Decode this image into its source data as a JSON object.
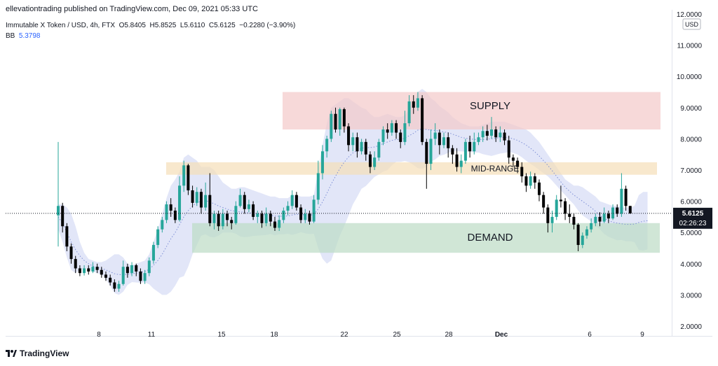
{
  "header": {
    "publisher_line": "ellevationtrading published on TradingView.com, Dec 09, 2021 05:33 UTC",
    "symbol": "Immutable X Token / USD, 4h, FTX",
    "open_label": "O",
    "open": "5.8405",
    "high_label": "H",
    "high": "5.8525",
    "low_label": "L",
    "low": "5.6110",
    "close_label": "C",
    "close": "5.6125",
    "change": "−0.2280 (−3.90%)",
    "bb_label": "BB",
    "bb_value": "5.3798"
  },
  "price_scale": {
    "currency": "USD",
    "last_price": "5.6125",
    "countdown": "02:26:23"
  },
  "footer": {
    "brand": "TradingView"
  },
  "colors": {
    "up": "#26a69a",
    "down": "#000000",
    "bb_band": "#d8def5",
    "bb_mid": "#7e8fd6",
    "supply": "#f4c9c9",
    "midrange": "#f5deb8",
    "demand": "#bcdcc4"
  },
  "chart_data": {
    "type": "candlestick",
    "title": "Immutable X Token / USD, 4h, FTX",
    "ylim": [
      2.0,
      12.0
    ],
    "ytick_labels": [
      "12.0000",
      "11.0000",
      "10.0000",
      "9.0000",
      "8.0000",
      "7.0000",
      "6.0000",
      "5.0000",
      "4.0000",
      "3.0000",
      "2.0000"
    ],
    "yticks": [
      12,
      11,
      10,
      9,
      8,
      7,
      6,
      5,
      4,
      3,
      2
    ],
    "x_tick_labels": [
      "8",
      "11",
      "15",
      "18",
      "22",
      "25",
      "28",
      "Dec",
      "6",
      "9"
    ],
    "last_price": 5.6125,
    "zones": [
      {
        "label": "SUPPLY",
        "y_low": 8.3,
        "y_high": 9.5,
        "start": "Dec 18",
        "end": "Dec 10",
        "color": "#f4c9c9"
      },
      {
        "label": "MID-RANGE",
        "y_low": 6.85,
        "y_high": 7.25,
        "start": "Nov 11",
        "end": "Dec 10",
        "color": "#f5deb8"
      },
      {
        "label": "DEMAND",
        "y_low": 4.35,
        "y_high": 5.3,
        "start": "Nov 13",
        "end": "Dec 10",
        "color": "#bcdcc4"
      }
    ],
    "candles": [
      [
        5.55,
        5.85,
        7.9,
        4.55
      ],
      [
        5.85,
        5.2,
        5.95,
        5.0
      ],
      [
        5.2,
        4.55,
        5.3,
        4.4
      ],
      [
        4.55,
        4.15,
        4.65,
        4.0
      ],
      [
        4.15,
        3.85,
        4.25,
        3.7
      ],
      [
        3.85,
        3.7,
        3.95,
        3.6
      ],
      [
        3.7,
        3.85,
        3.95,
        3.62
      ],
      [
        3.85,
        3.75,
        3.95,
        3.65
      ],
      [
        3.75,
        3.9,
        4.05,
        3.7
      ],
      [
        3.9,
        3.8,
        4.0,
        3.7
      ],
      [
        3.8,
        3.65,
        3.9,
        3.55
      ],
      [
        3.65,
        3.55,
        3.75,
        3.45
      ],
      [
        3.55,
        3.4,
        3.65,
        3.3
      ],
      [
        3.4,
        3.2,
        3.5,
        3.1
      ],
      [
        3.2,
        3.35,
        3.45,
        3.1
      ],
      [
        3.35,
        3.9,
        4.1,
        3.3
      ],
      [
        3.9,
        3.7,
        4.0,
        3.55
      ],
      [
        3.7,
        3.95,
        4.05,
        3.6
      ],
      [
        3.95,
        3.75,
        4.0,
        3.6
      ],
      [
        3.75,
        3.45,
        3.85,
        3.35
      ],
      [
        3.45,
        3.7,
        3.8,
        3.35
      ],
      [
        3.7,
        4.1,
        4.2,
        3.6
      ],
      [
        4.1,
        4.6,
        4.7,
        4.0
      ],
      [
        4.6,
        5.1,
        5.2,
        4.5
      ],
      [
        5.1,
        5.4,
        5.5,
        5.0
      ],
      [
        5.4,
        5.9,
        6.0,
        5.3
      ],
      [
        5.9,
        5.7,
        6.1,
        5.5
      ],
      [
        5.7,
        5.4,
        5.8,
        5.3
      ],
      [
        5.4,
        6.5,
        6.8,
        5.35
      ],
      [
        6.5,
        7.15,
        7.3,
        6.3
      ],
      [
        7.15,
        6.35,
        7.2,
        6.2
      ],
      [
        6.35,
        5.95,
        6.5,
        5.8
      ],
      [
        5.95,
        6.3,
        6.45,
        5.85
      ],
      [
        6.3,
        5.8,
        6.4,
        5.6
      ],
      [
        5.8,
        6.2,
        6.6,
        5.7
      ],
      [
        6.2,
        5.3,
        6.9,
        5.2
      ],
      [
        5.3,
        5.6,
        5.7,
        5.1
      ],
      [
        5.6,
        5.2,
        5.7,
        5.05
      ],
      [
        5.2,
        5.6,
        5.75,
        5.1
      ],
      [
        5.6,
        5.4,
        5.7,
        5.2
      ],
      [
        5.4,
        5.3,
        5.5,
        5.1
      ],
      [
        5.3,
        5.85,
        6.0,
        5.25
      ],
      [
        5.85,
        6.2,
        6.4,
        5.8
      ],
      [
        6.2,
        5.75,
        6.3,
        5.6
      ],
      [
        5.75,
        5.9,
        6.05,
        5.65
      ],
      [
        5.9,
        5.5,
        6.0,
        5.4
      ],
      [
        5.5,
        5.6,
        5.7,
        5.3
      ],
      [
        5.6,
        5.3,
        5.7,
        5.15
      ],
      [
        5.3,
        5.6,
        5.8,
        5.2
      ],
      [
        5.6,
        5.35,
        5.7,
        5.2
      ],
      [
        5.35,
        5.15,
        5.5,
        5.05
      ],
      [
        5.15,
        5.4,
        5.55,
        5.05
      ],
      [
        5.4,
        5.7,
        5.8,
        5.3
      ],
      [
        5.7,
        5.85,
        6.0,
        5.55
      ],
      [
        5.85,
        6.2,
        6.35,
        5.75
      ],
      [
        6.2,
        5.8,
        6.3,
        5.7
      ],
      [
        5.8,
        5.4,
        5.9,
        5.3
      ],
      [
        5.4,
        5.6,
        5.75,
        5.3
      ],
      [
        5.6,
        5.35,
        5.7,
        5.25
      ],
      [
        5.35,
        6.05,
        6.2,
        5.3
      ],
      [
        6.05,
        6.9,
        7.3,
        5.9
      ],
      [
        6.9,
        7.6,
        7.8,
        6.7
      ],
      [
        7.6,
        8.0,
        8.1,
        7.4
      ],
      [
        8.0,
        8.8,
        8.9,
        7.9
      ],
      [
        8.8,
        8.3,
        9.0,
        8.2
      ],
      [
        8.3,
        8.95,
        9.0,
        8.1
      ],
      [
        8.95,
        8.4,
        9.0,
        8.2
      ],
      [
        8.4,
        7.8,
        8.5,
        7.6
      ],
      [
        7.8,
        8.05,
        8.2,
        7.6
      ],
      [
        8.05,
        7.6,
        8.2,
        7.4
      ],
      [
        7.6,
        7.9,
        8.0,
        7.5
      ],
      [
        7.9,
        7.5,
        8.0,
        7.3
      ],
      [
        7.5,
        7.1,
        7.6,
        6.9
      ],
      [
        7.1,
        7.4,
        7.6,
        7.0
      ],
      [
        7.4,
        7.9,
        8.0,
        7.3
      ],
      [
        7.9,
        8.3,
        8.4,
        7.8
      ],
      [
        8.3,
        8.2,
        8.5,
        8.0
      ],
      [
        8.2,
        8.5,
        8.6,
        8.1
      ],
      [
        8.5,
        8.2,
        8.6,
        8.0
      ],
      [
        8.2,
        7.9,
        8.3,
        7.7
      ],
      [
        7.9,
        8.5,
        8.9,
        7.8
      ],
      [
        8.5,
        9.2,
        9.4,
        8.4
      ],
      [
        9.2,
        9.0,
        9.4,
        8.8
      ],
      [
        9.0,
        9.3,
        9.5,
        8.9
      ],
      [
        9.3,
        7.9,
        9.4,
        7.8
      ],
      [
        7.9,
        7.2,
        8.0,
        6.4
      ],
      [
        7.2,
        8.0,
        8.3,
        7.0
      ],
      [
        8.0,
        8.2,
        8.5,
        7.8
      ],
      [
        8.2,
        7.8,
        8.3,
        7.5
      ],
      [
        7.8,
        8.05,
        8.2,
        7.7
      ],
      [
        8.05,
        7.7,
        8.2,
        7.4
      ],
      [
        7.7,
        7.5,
        7.8,
        7.2
      ],
      [
        7.5,
        7.1,
        7.7,
        6.95
      ],
      [
        7.1,
        7.3,
        7.5,
        6.9
      ],
      [
        7.3,
        7.9,
        8.0,
        7.2
      ],
      [
        7.9,
        7.6,
        8.1,
        7.4
      ],
      [
        7.6,
        7.9,
        8.2,
        7.5
      ],
      [
        7.9,
        8.05,
        8.2,
        7.8
      ],
      [
        8.05,
        8.25,
        8.4,
        7.9
      ],
      [
        8.25,
        8.1,
        8.45,
        7.95
      ],
      [
        8.1,
        8.3,
        8.7,
        8.0
      ],
      [
        8.3,
        8.05,
        8.4,
        7.9
      ],
      [
        8.05,
        8.2,
        8.4,
        7.9
      ],
      [
        8.2,
        7.95,
        8.3,
        7.8
      ],
      [
        7.95,
        7.4,
        8.1,
        7.2
      ],
      [
        7.4,
        7.3,
        7.5,
        7.1
      ],
      [
        7.3,
        7.1,
        7.4,
        6.9
      ],
      [
        7.1,
        6.8,
        7.25,
        6.6
      ],
      [
        6.8,
        6.5,
        6.9,
        6.3
      ],
      [
        6.5,
        6.8,
        6.95,
        6.4
      ],
      [
        6.8,
        6.6,
        6.9,
        6.4
      ],
      [
        6.6,
        6.2,
        6.7,
        6.0
      ],
      [
        6.2,
        5.8,
        6.3,
        5.6
      ],
      [
        5.8,
        5.3,
        5.9,
        5.0
      ],
      [
        5.3,
        5.5,
        5.7,
        5.0
      ],
      [
        5.5,
        6.05,
        6.2,
        5.4
      ],
      [
        6.05,
        6.0,
        6.5,
        5.8
      ],
      [
        6.0,
        5.6,
        6.1,
        5.4
      ],
      [
        5.6,
        5.5,
        5.9,
        5.3
      ],
      [
        5.5,
        5.25,
        5.6,
        5.1
      ],
      [
        5.25,
        4.6,
        5.3,
        4.4
      ],
      [
        4.6,
        4.9,
        5.0,
        4.5
      ],
      [
        4.9,
        5.1,
        5.2,
        4.8
      ],
      [
        5.1,
        5.3,
        5.45,
        5.0
      ],
      [
        5.3,
        5.5,
        5.6,
        5.2
      ],
      [
        5.5,
        5.35,
        5.65,
        5.2
      ],
      [
        5.35,
        5.6,
        5.8,
        5.3
      ],
      [
        5.6,
        5.45,
        5.7,
        5.3
      ],
      [
        5.45,
        5.8,
        5.9,
        5.4
      ],
      [
        5.8,
        5.6,
        5.9,
        5.5
      ],
      [
        5.6,
        6.4,
        6.9,
        5.5
      ],
      [
        6.4,
        5.85,
        6.5,
        5.7
      ],
      [
        5.85,
        5.61,
        5.85,
        5.6
      ]
    ],
    "bollinger": {
      "upper": [
        5.9,
        5.9,
        5.8,
        5.6,
        5.2,
        4.7,
        4.35,
        4.15,
        4.1,
        4.05,
        4.05,
        4.1,
        4.2,
        4.3,
        4.3,
        4.2,
        4.0,
        3.95,
        4.0,
        4.05,
        4.1,
        4.3,
        4.7,
        5.1,
        5.6,
        6.1,
        6.5,
        6.7,
        6.95,
        7.4,
        7.5,
        7.4,
        7.3,
        7.1,
        7.1,
        7.1,
        7.0,
        6.8,
        6.6,
        6.5,
        6.4,
        6.4,
        6.45,
        6.45,
        6.4,
        6.35,
        6.3,
        6.25,
        6.2,
        6.15,
        6.15,
        6.1,
        6.1,
        6.1,
        6.2,
        6.2,
        6.15,
        6.15,
        6.15,
        6.2,
        7.0,
        7.8,
        8.5,
        9.0,
        9.1,
        9.2,
        9.3,
        9.3,
        9.2,
        9.1,
        9.0,
        8.95,
        8.8,
        8.7,
        8.7,
        8.75,
        8.8,
        8.75,
        8.7,
        8.7,
        8.75,
        8.95,
        9.2,
        9.5,
        9.6,
        9.5,
        9.3,
        9.2,
        9.05,
        8.95,
        8.85,
        8.7,
        8.6,
        8.5,
        8.45,
        8.4,
        8.4,
        8.4,
        8.45,
        8.5,
        8.55,
        8.55,
        8.55,
        8.55,
        8.5,
        8.45,
        8.4,
        8.35,
        8.3,
        8.2,
        8.05,
        7.9,
        7.7,
        7.5,
        7.3,
        7.1,
        6.9,
        6.7,
        6.6,
        6.5,
        6.5,
        6.45,
        6.35,
        6.25,
        6.15,
        6.0,
        5.95,
        5.9,
        5.85,
        5.85,
        5.8,
        5.8,
        5.8,
        5.85,
        6.2,
        6.3,
        6.3
      ],
      "middle": [
        5.5,
        5.3,
        5.0,
        4.7,
        4.45,
        4.25,
        4.1,
        4.0,
        3.92,
        3.88,
        3.85,
        3.8,
        3.74,
        3.68,
        3.65,
        3.65,
        3.66,
        3.68,
        3.7,
        3.72,
        3.75,
        3.82,
        3.95,
        4.1,
        4.3,
        4.55,
        4.8,
        5.0,
        5.25,
        5.5,
        5.7,
        5.85,
        5.95,
        6.0,
        6.02,
        5.98,
        5.92,
        5.85,
        5.8,
        5.75,
        5.7,
        5.68,
        5.66,
        5.65,
        5.63,
        5.62,
        5.6,
        5.58,
        5.56,
        5.55,
        5.53,
        5.52,
        5.52,
        5.53,
        5.56,
        5.58,
        5.58,
        5.56,
        5.55,
        5.58,
        5.75,
        5.98,
        6.25,
        6.55,
        6.8,
        7.05,
        7.25,
        7.42,
        7.55,
        7.62,
        7.7,
        7.72,
        7.72,
        7.74,
        7.78,
        7.85,
        7.9,
        7.95,
        7.98,
        7.98,
        8.02,
        8.1,
        8.18,
        8.28,
        8.32,
        8.3,
        8.28,
        8.27,
        8.25,
        8.22,
        8.2,
        8.15,
        8.1,
        8.05,
        8.02,
        8.0,
        7.98,
        7.98,
        7.98,
        7.99,
        8.0,
        8.02,
        8.04,
        8.05,
        8.04,
        8.0,
        7.95,
        7.88,
        7.8,
        7.7,
        7.58,
        7.45,
        7.3,
        7.15,
        6.98,
        6.8,
        6.62,
        6.45,
        6.32,
        6.2,
        6.1,
        6.0,
        5.9,
        5.8,
        5.68,
        5.55,
        5.45,
        5.38,
        5.33,
        5.3,
        5.28,
        5.26,
        5.26,
        5.27,
        5.32,
        5.36,
        5.38
      ],
      "lower": [
        5.1,
        4.7,
        4.2,
        3.8,
        3.7,
        3.8,
        3.85,
        3.85,
        3.74,
        3.7,
        3.65,
        3.5,
        3.28,
        3.06,
        3.0,
        3.1,
        3.32,
        3.41,
        3.4,
        3.39,
        3.4,
        3.34,
        3.2,
        3.1,
        3.0,
        3.0,
        3.1,
        3.3,
        3.55,
        3.6,
        3.9,
        4.3,
        4.6,
        4.9,
        4.94,
        4.86,
        4.84,
        4.9,
        5.0,
        5.0,
        5.0,
        4.96,
        4.87,
        4.85,
        4.86,
        4.89,
        4.9,
        4.91,
        4.92,
        4.95,
        4.91,
        4.94,
        4.94,
        4.96,
        4.92,
        4.96,
        5.01,
        4.97,
        4.95,
        4.96,
        4.5,
        4.16,
        4.0,
        4.1,
        4.5,
        4.9,
        5.2,
        5.54,
        5.9,
        6.14,
        6.4,
        6.49,
        6.64,
        6.78,
        6.86,
        6.95,
        7.0,
        7.15,
        7.26,
        7.26,
        7.29,
        7.25,
        7.16,
        7.06,
        7.04,
        7.1,
        7.26,
        7.34,
        7.45,
        7.49,
        7.55,
        7.6,
        7.6,
        7.6,
        7.59,
        7.6,
        7.56,
        7.56,
        7.51,
        7.48,
        7.45,
        7.49,
        7.53,
        7.55,
        7.58,
        7.55,
        7.5,
        7.41,
        7.3,
        7.2,
        7.11,
        7.0,
        6.9,
        6.8,
        6.66,
        6.5,
        6.34,
        6.2,
        6.04,
        5.9,
        5.7,
        5.55,
        5.45,
        5.35,
        5.21,
        5.1,
        4.95,
        4.86,
        4.81,
        4.75,
        4.76,
        4.72,
        4.72,
        4.69,
        4.44,
        4.42,
        4.46
      ]
    }
  }
}
